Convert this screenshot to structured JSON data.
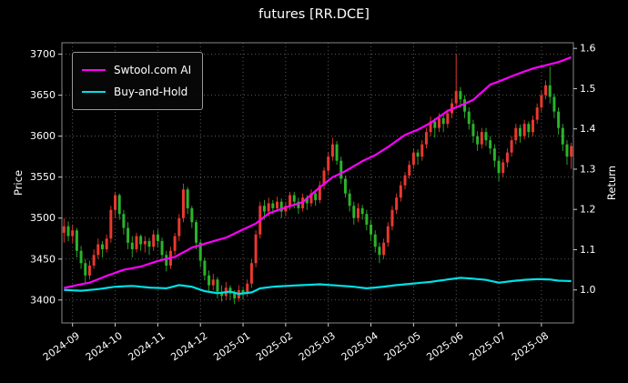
{
  "chart_data": {
    "type": "candlestick+line",
    "title": "futures [RR.DCE]",
    "background": "#000000",
    "grid": "dotted",
    "left_axis": {
      "label": "Price",
      "ticks": [
        3400,
        3450,
        3500,
        3550,
        3600,
        3650,
        3700
      ],
      "domain": [
        3372,
        3714
      ]
    },
    "right_axis": {
      "label": "Return",
      "ticks": [
        "1.0",
        "1.1",
        "1.2",
        "1.3",
        "1.4",
        "1.5",
        "1.6"
      ],
      "tick_values": [
        1.0,
        1.1,
        1.2,
        1.3,
        1.4,
        1.5,
        1.6
      ],
      "domain": [
        0.918,
        1.614
      ]
    },
    "x_axis": {
      "tick_labels": [
        "2024-09",
        "2024-10",
        "2024-11",
        "2024-12",
        "2025-01",
        "2025-02",
        "2025-03",
        "2025-04",
        "2025-05",
        "2025-06",
        "2025-07",
        "2025-08"
      ],
      "tick_indices": [
        2,
        12,
        22,
        32,
        42,
        52,
        62,
        72,
        82,
        92,
        102,
        112
      ]
    },
    "legend": {
      "position": "upper-left"
    },
    "candles": {
      "up_color": "#e8392f",
      "down_color": "#2bb32b",
      "ohlc": [
        [
          3482,
          3500,
          3470,
          3490
        ],
        [
          3490,
          3496,
          3472,
          3478
        ],
        [
          3478,
          3492,
          3470,
          3485
        ],
        [
          3485,
          3488,
          3452,
          3460
        ],
        [
          3460,
          3466,
          3438,
          3445
        ],
        [
          3445,
          3450,
          3420,
          3430
        ],
        [
          3430,
          3448,
          3425,
          3442
        ],
        [
          3442,
          3462,
          3438,
          3455
        ],
        [
          3455,
          3475,
          3450,
          3468
        ],
        [
          3468,
          3472,
          3452,
          3462
        ],
        [
          3462,
          3480,
          3458,
          3475
        ],
        [
          3475,
          3515,
          3470,
          3510
        ],
        [
          3510,
          3532,
          3500,
          3528
        ],
        [
          3528,
          3530,
          3498,
          3505
        ],
        [
          3505,
          3510,
          3480,
          3488
        ],
        [
          3488,
          3495,
          3462,
          3470
        ],
        [
          3470,
          3478,
          3452,
          3462
        ],
        [
          3462,
          3482,
          3458,
          3478
        ],
        [
          3478,
          3480,
          3460,
          3468
        ],
        [
          3468,
          3478,
          3458,
          3472
        ],
        [
          3472,
          3476,
          3455,
          3465
        ],
        [
          3465,
          3485,
          3460,
          3480
        ],
        [
          3480,
          3486,
          3464,
          3472
        ],
        [
          3472,
          3476,
          3448,
          3455
        ],
        [
          3455,
          3460,
          3435,
          3442
        ],
        [
          3442,
          3465,
          3438,
          3460
        ],
        [
          3460,
          3482,
          3455,
          3478
        ],
        [
          3478,
          3505,
          3472,
          3500
        ],
        [
          3500,
          3542,
          3495,
          3535
        ],
        [
          3535,
          3538,
          3505,
          3512
        ],
        [
          3512,
          3515,
          3488,
          3495
        ],
        [
          3495,
          3498,
          3462,
          3470
        ],
        [
          3470,
          3474,
          3440,
          3448
        ],
        [
          3448,
          3452,
          3424,
          3430
        ],
        [
          3430,
          3436,
          3410,
          3418
        ],
        [
          3418,
          3432,
          3412,
          3425
        ],
        [
          3425,
          3428,
          3402,
          3410
        ],
        [
          3410,
          3418,
          3398,
          3405
        ],
        [
          3405,
          3422,
          3400,
          3415
        ],
        [
          3415,
          3418,
          3400,
          3408
        ],
        [
          3408,
          3412,
          3395,
          3402
        ],
        [
          3402,
          3418,
          3398,
          3412
        ],
        [
          3412,
          3415,
          3400,
          3408
        ],
        [
          3408,
          3425,
          3404,
          3420
        ],
        [
          3420,
          3450,
          3415,
          3445
        ],
        [
          3445,
          3485,
          3440,
          3480
        ],
        [
          3480,
          3520,
          3475,
          3515
        ],
        [
          3515,
          3522,
          3498,
          3508
        ],
        [
          3508,
          3525,
          3502,
          3518
        ],
        [
          3518,
          3522,
          3505,
          3512
        ],
        [
          3512,
          3526,
          3508,
          3520
        ],
        [
          3520,
          3524,
          3500,
          3508
        ],
        [
          3508,
          3520,
          3502,
          3515
        ],
        [
          3515,
          3532,
          3510,
          3528
        ],
        [
          3528,
          3532,
          3512,
          3520
        ],
        [
          3520,
          3525,
          3505,
          3512
        ],
        [
          3512,
          3530,
          3508,
          3525
        ],
        [
          3525,
          3528,
          3510,
          3518
        ],
        [
          3518,
          3535,
          3514,
          3530
        ],
        [
          3530,
          3534,
          3515,
          3522
        ],
        [
          3522,
          3545,
          3518,
          3540
        ],
        [
          3540,
          3562,
          3535,
          3558
        ],
        [
          3558,
          3580,
          3552,
          3575
        ],
        [
          3575,
          3598,
          3570,
          3590
        ],
        [
          3590,
          3594,
          3565,
          3570
        ],
        [
          3570,
          3575,
          3542,
          3548
        ],
        [
          3548,
          3552,
          3525,
          3530
        ],
        [
          3530,
          3535,
          3508,
          3515
        ],
        [
          3515,
          3520,
          3492,
          3500
        ],
        [
          3500,
          3518,
          3495,
          3512
        ],
        [
          3512,
          3516,
          3498,
          3505
        ],
        [
          3505,
          3510,
          3485,
          3492
        ],
        [
          3492,
          3498,
          3472,
          3480
        ],
        [
          3480,
          3485,
          3458,
          3465
        ],
        [
          3465,
          3470,
          3445,
          3455
        ],
        [
          3455,
          3475,
          3450,
          3470
        ],
        [
          3470,
          3495,
          3465,
          3490
        ],
        [
          3490,
          3515,
          3485,
          3510
        ],
        [
          3510,
          3530,
          3505,
          3525
        ],
        [
          3525,
          3545,
          3520,
          3540
        ],
        [
          3540,
          3556,
          3535,
          3552
        ],
        [
          3552,
          3570,
          3548,
          3565
        ],
        [
          3565,
          3585,
          3560,
          3580
        ],
        [
          3580,
          3584,
          3565,
          3575
        ],
        [
          3575,
          3595,
          3570,
          3590
        ],
        [
          3590,
          3610,
          3585,
          3605
        ],
        [
          3605,
          3624,
          3600,
          3618
        ],
        [
          3618,
          3622,
          3598,
          3610
        ],
        [
          3610,
          3628,
          3605,
          3622
        ],
        [
          3622,
          3626,
          3605,
          3615
        ],
        [
          3615,
          3632,
          3610,
          3628
        ],
        [
          3628,
          3646,
          3622,
          3640
        ],
        [
          3640,
          3700,
          3635,
          3655
        ],
        [
          3655,
          3660,
          3635,
          3645
        ],
        [
          3645,
          3650,
          3622,
          3630
        ],
        [
          3630,
          3635,
          3608,
          3615
        ],
        [
          3615,
          3620,
          3592,
          3600
        ],
        [
          3600,
          3606,
          3582,
          3590
        ],
        [
          3590,
          3610,
          3585,
          3605
        ],
        [
          3605,
          3610,
          3588,
          3595
        ],
        [
          3595,
          3600,
          3578,
          3585
        ],
        [
          3585,
          3590,
          3562,
          3570
        ],
        [
          3570,
          3575,
          3545,
          3555
        ],
        [
          3555,
          3572,
          3550,
          3568
        ],
        [
          3568,
          3585,
          3562,
          3580
        ],
        [
          3580,
          3600,
          3575,
          3595
        ],
        [
          3595,
          3615,
          3590,
          3610
        ],
        [
          3610,
          3614,
          3592,
          3600
        ],
        [
          3600,
          3620,
          3596,
          3615
        ],
        [
          3615,
          3618,
          3598,
          3605
        ],
        [
          3605,
          3625,
          3600,
          3620
        ],
        [
          3620,
          3640,
          3615,
          3635
        ],
        [
          3635,
          3655,
          3630,
          3650
        ],
        [
          3650,
          3668,
          3645,
          3662
        ],
        [
          3662,
          3685,
          3640,
          3648
        ],
        [
          3648,
          3652,
          3622,
          3630
        ],
        [
          3630,
          3635,
          3602,
          3610
        ],
        [
          3610,
          3615,
          3582,
          3590
        ],
        [
          3590,
          3595,
          3565,
          3575
        ],
        [
          3575,
          3592,
          3560,
          3588
        ]
      ]
    },
    "series": [
      {
        "name": "Swtool.com AI",
        "color": "#ff00ff",
        "axis": "right",
        "anchors": [
          [
            0,
            1.005
          ],
          [
            3,
            1.012
          ],
          [
            6,
            1.018
          ],
          [
            10,
            1.035
          ],
          [
            14,
            1.05
          ],
          [
            18,
            1.058
          ],
          [
            22,
            1.072
          ],
          [
            26,
            1.082
          ],
          [
            30,
            1.105
          ],
          [
            34,
            1.118
          ],
          [
            38,
            1.13
          ],
          [
            42,
            1.15
          ],
          [
            45,
            1.165
          ],
          [
            48,
            1.19
          ],
          [
            52,
            1.205
          ],
          [
            56,
            1.218
          ],
          [
            60,
            1.255
          ],
          [
            63,
            1.28
          ],
          [
            66,
            1.295
          ],
          [
            70,
            1.32
          ],
          [
            73,
            1.335
          ],
          [
            76,
            1.355
          ],
          [
            80,
            1.385
          ],
          [
            83,
            1.398
          ],
          [
            86,
            1.415
          ],
          [
            90,
            1.445
          ],
          [
            93,
            1.458
          ],
          [
            96,
            1.472
          ],
          [
            100,
            1.51
          ],
          [
            103,
            1.522
          ],
          [
            106,
            1.535
          ],
          [
            110,
            1.55
          ],
          [
            113,
            1.558
          ],
          [
            116,
            1.566
          ],
          [
            119,
            1.578
          ]
        ]
      },
      {
        "name": "Buy-and-Hold",
        "color": "#00e0e6",
        "axis": "right",
        "anchors": [
          [
            0,
            1.0
          ],
          [
            4,
            0.998
          ],
          [
            8,
            1.002
          ],
          [
            12,
            1.008
          ],
          [
            16,
            1.01
          ],
          [
            20,
            1.006
          ],
          [
            24,
            1.004
          ],
          [
            27,
            1.012
          ],
          [
            30,
            1.008
          ],
          [
            33,
            0.997
          ],
          [
            36,
            0.992
          ],
          [
            39,
            0.996
          ],
          [
            41,
            0.99
          ],
          [
            44,
            0.994
          ],
          [
            46,
            1.004
          ],
          [
            49,
            1.008
          ],
          [
            52,
            1.01
          ],
          [
            56,
            1.012
          ],
          [
            60,
            1.014
          ],
          [
            64,
            1.011
          ],
          [
            68,
            1.008
          ],
          [
            71,
            1.004
          ],
          [
            74,
            1.007
          ],
          [
            78,
            1.012
          ],
          [
            82,
            1.016
          ],
          [
            86,
            1.02
          ],
          [
            90,
            1.026
          ],
          [
            93,
            1.03
          ],
          [
            96,
            1.028
          ],
          [
            99,
            1.025
          ],
          [
            102,
            1.018
          ],
          [
            105,
            1.022
          ],
          [
            108,
            1.025
          ],
          [
            111,
            1.027
          ],
          [
            114,
            1.026
          ],
          [
            116,
            1.023
          ],
          [
            119,
            1.022
          ]
        ]
      }
    ]
  }
}
